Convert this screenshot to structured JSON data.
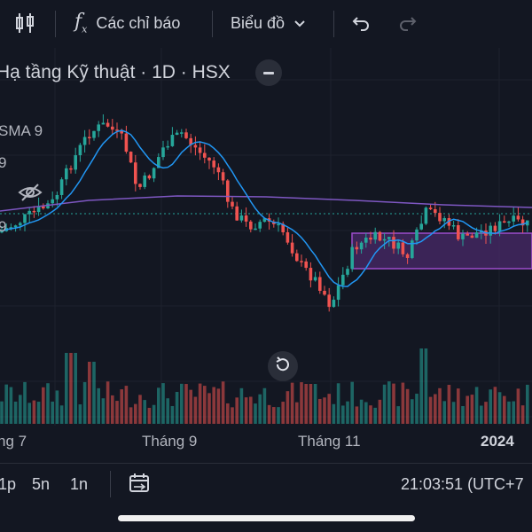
{
  "toolbar": {
    "indicators_label": "Các chỉ báo",
    "chart_type_label": "Biểu đồ"
  },
  "symbol": {
    "title": "Hạ tầng Kỹ thuật · 1D · HSX"
  },
  "indicators": {
    "sma_label": "SMA 9",
    "value_a": "9",
    "value_b": "9"
  },
  "time_axis": {
    "labels": [
      "ng 7",
      "Tháng 9",
      "Tháng 11",
      "2024"
    ]
  },
  "bottom": {
    "ranges": [
      "1p",
      "5n",
      "1n"
    ],
    "clock": "21:03:51 (UTC+7"
  },
  "colors": {
    "up": "#26a69a",
    "down": "#ef5350",
    "sma": "#2196f3",
    "long_ma": "#7e57c2",
    "zone_fill": "#4a2a6a",
    "zone_border": "#9c4dcc"
  }
}
